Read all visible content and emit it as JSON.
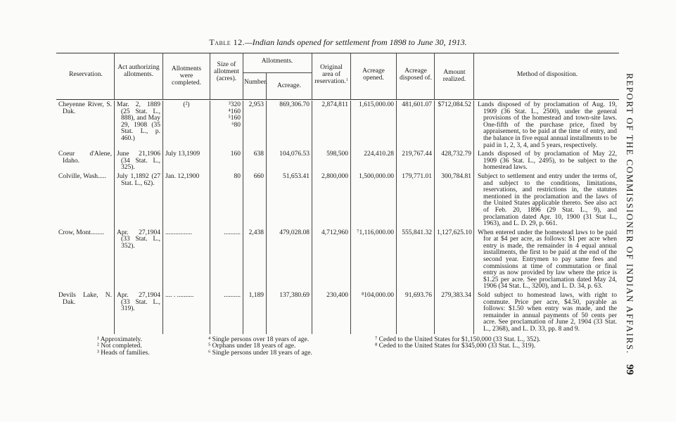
{
  "title": {
    "label": "Table 12.",
    "text": "—Indian lands opened for settlement from 1898 to June 30, 1913."
  },
  "side_header": "REPORT OF THE COMMISSIONER OF INDIAN AFFAIRS.",
  "page_number": "99",
  "headers": {
    "reservation": "Reservation.",
    "act": "Act authorizing allotments.",
    "completed": "Allotments were completed.",
    "size": "Size of allotment (acres).",
    "allotments": "Allotments.",
    "number": "Number.",
    "acreage": "Acreage.",
    "original": "Original area of reservation.",
    "original_note": "1",
    "opened": "Acreage opened.",
    "disposed": "Acreage disposed of.",
    "amount": "Amount realized.",
    "method": "Method of disposition."
  },
  "rows": [
    {
      "reservation": "Cheyenne River, S. Dak.",
      "act": "Mar. 2, 1889 (25 Stat. L., 888), and May 29, 1908 (35 Stat. L., p. 460.)",
      "completed": "(²)",
      "size": [
        "³320",
        "⁴160",
        "⁵160",
        "⁶80"
      ],
      "number": "2,953",
      "acreage": "869,306.70",
      "original": "2,874,811",
      "opened": "1,615,000.00",
      "disposed": "481,601.07",
      "amount": "$712,084.52",
      "method": "Lands disposed of by proclamation of Aug. 19, 1909 (36 Stat. L., 2500), under the general provisions of the homestead and town-site laws. One-fifth of the purchase price, fixed by appraisement, to be paid at the time of entry, and the balance in five equal annual installments to be paid in 1, 2, 3, 4, and 5 years, respectively."
    },
    {
      "reservation": "Coeur d'Alene, Idaho.",
      "act": "June 21,1906 (34 Stat. L., 325).",
      "completed": "July 13,1909",
      "size": [
        "160"
      ],
      "number": "638",
      "acreage": "104,076.53",
      "original": "598,500",
      "opened": "224,410.28",
      "disposed": "219,767.44",
      "amount": "428,732.79",
      "method": "Lands disposed of by proclamation of May 22, 1909 (36 Stat. L., 2495), to be subject to the homestead laws."
    },
    {
      "reservation": "Colville, Wash.....",
      "act": "July 1,1892 (27 Stat. L., 62).",
      "completed": "Jan. 12,1900",
      "size": [
        "80"
      ],
      "number": "660",
      "acreage": "51,653.41",
      "original": "2,800,000",
      "opened": "1,500,000.00",
      "disposed": "179,771.01",
      "amount": "300,784.81",
      "method": "Subject to settlement and entry under the terms of, and subject to the conditions, limitations, reservations, and restrictions in, the statutes mentioned in the proclamation and the laws of the United States applicable thereto. See also act of Feb. 20, 1896 (29 Stat. L., 9), and proclamation dated Apr. 10, 1900 (31 Stat L., 1963), and L. D. 29, p. 661."
    },
    {
      "reservation": "Crow, Mont........",
      "act": "Apr. 27,1904 (33 Stat. L., 352).",
      "completed": "................",
      "size": [
        ".........."
      ],
      "number": "2,438",
      "acreage": "479,028.08",
      "original": "4,712,960",
      "opened": "⁷1,116,000.00",
      "disposed": "555,841.32",
      "amount": "1,127,625.10",
      "method": "When entered under the homestead laws to be paid for at $4 per acre, as follows: $1 per acre when entry is made, the remainder in 4 equal annual installments, the first to be paid at the end of the second year. Entrymen to pay same fees and commissions at time of commutation or final entry as now provided by law where the price is $1.25 per acre. See proclamation dated May 24, 1906 (34 Stat. L., 3200), and L. D. 34, p. 63."
    },
    {
      "reservation": "Devils Lake, N. Dak.",
      "act": "Apr. 27,1904 (33 Stat. L., 319).",
      "completed": ".... . ..........",
      "size": [
        ".........."
      ],
      "number": "1,189",
      "acreage": "137,380.69",
      "original": "230,400",
      "opened": "⁸104,000.00",
      "disposed": "91,693.76",
      "amount": "279,383.34",
      "method": "Sold subject to homestead laws, with right to commute. Price per acre, $4.50, payable as follows: $1.50 when entry was made, and the remainder in annual payments of 50 cents per acre. See proclamation of June 2, 1904 (33 Stat. L., 2368), and L. D. 33, pp. 8 and 9."
    }
  ],
  "footnotes": [
    "¹ Approximately.",
    "² Not completed.",
    "³ Heads of families.",
    "⁴ Single persons over 18 years of age.",
    "⁵ Orphans under 18 years of age.",
    "⁶ Single persons under 18 years of age.",
    "⁷ Ceded to the United States for $1,150,000 (33 Stat. L., 352).",
    "⁸ Ceded to the United States for $345,000 (33 Stat. L., 319)."
  ]
}
